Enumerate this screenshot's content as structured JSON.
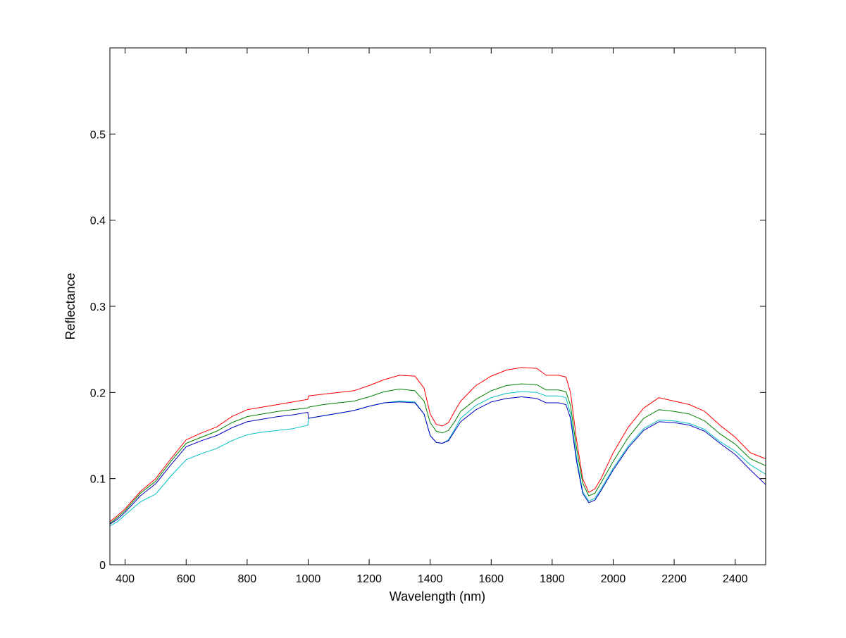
{
  "chart_data": {
    "type": "line",
    "title": "",
    "xlabel": "Wavelength (nm)",
    "ylabel": "Reflectance",
    "xlim": [
      350,
      2500
    ],
    "ylim": [
      0,
      0.6
    ],
    "xticks": [
      400,
      600,
      800,
      1000,
      1200,
      1400,
      1600,
      1800,
      2000,
      2200,
      2400
    ],
    "xtick_labels": [
      "400",
      "600",
      "800",
      "1000",
      "1200",
      "1400",
      "1600",
      "1800",
      "2000",
      "2200",
      "2400"
    ],
    "yticks": [
      0,
      0.1,
      0.2,
      0.3,
      0.4,
      0.5
    ],
    "ytick_labels": [
      "0",
      "0.1",
      "0.2",
      "0.3",
      "0.4",
      "0.5"
    ],
    "grid": false,
    "legend": null,
    "x": [
      350,
      375,
      400,
      450,
      500,
      550,
      600,
      650,
      700,
      750,
      800,
      850,
      900,
      950,
      999,
      1001,
      1050,
      1100,
      1150,
      1200,
      1250,
      1300,
      1350,
      1380,
      1400,
      1420,
      1440,
      1460,
      1480,
      1500,
      1550,
      1600,
      1650,
      1700,
      1750,
      1780,
      1820,
      1845,
      1860,
      1880,
      1900,
      1920,
      1940,
      1960,
      2000,
      2050,
      2100,
      2150,
      2200,
      2250,
      2300,
      2350,
      2400,
      2450,
      2500
    ],
    "series": [
      {
        "color": "#ff0000",
        "values": [
          0.05,
          0.057,
          0.065,
          0.085,
          0.1,
          0.123,
          0.145,
          0.153,
          0.16,
          0.172,
          0.18,
          0.183,
          0.186,
          0.189,
          0.192,
          0.196,
          0.198,
          0.2,
          0.202,
          0.208,
          0.215,
          0.22,
          0.219,
          0.205,
          0.175,
          0.163,
          0.161,
          0.165,
          0.178,
          0.19,
          0.208,
          0.219,
          0.226,
          0.229,
          0.228,
          0.22,
          0.22,
          0.218,
          0.2,
          0.145,
          0.1,
          0.084,
          0.088,
          0.1,
          0.13,
          0.16,
          0.182,
          0.194,
          0.19,
          0.186,
          0.178,
          0.162,
          0.148,
          0.13,
          0.123
        ]
      },
      {
        "color": "#008000",
        "values": [
          0.048,
          0.055,
          0.063,
          0.083,
          0.097,
          0.12,
          0.141,
          0.148,
          0.155,
          0.165,
          0.172,
          0.175,
          0.178,
          0.18,
          0.182,
          0.183,
          0.186,
          0.188,
          0.19,
          0.195,
          0.201,
          0.204,
          0.202,
          0.19,
          0.165,
          0.155,
          0.153,
          0.156,
          0.166,
          0.178,
          0.192,
          0.202,
          0.208,
          0.21,
          0.209,
          0.203,
          0.203,
          0.201,
          0.185,
          0.135,
          0.095,
          0.08,
          0.083,
          0.095,
          0.12,
          0.148,
          0.17,
          0.18,
          0.178,
          0.175,
          0.167,
          0.152,
          0.14,
          0.123,
          0.115
        ]
      },
      {
        "color": "#00bfbf",
        "values": [
          0.045,
          0.05,
          0.058,
          0.073,
          0.082,
          0.103,
          0.122,
          0.129,
          0.135,
          0.144,
          0.151,
          0.154,
          0.156,
          0.158,
          0.162,
          0.17,
          0.173,
          0.176,
          0.179,
          0.184,
          0.188,
          0.19,
          0.189,
          0.175,
          0.15,
          0.142,
          0.141,
          0.145,
          0.157,
          0.17,
          0.185,
          0.194,
          0.199,
          0.201,
          0.2,
          0.196,
          0.196,
          0.194,
          0.175,
          0.125,
          0.085,
          0.074,
          0.077,
          0.088,
          0.112,
          0.138,
          0.158,
          0.168,
          0.167,
          0.164,
          0.157,
          0.143,
          0.132,
          0.116,
          0.105
        ]
      },
      {
        "color": "#0000bf",
        "values": [
          0.047,
          0.053,
          0.061,
          0.08,
          0.094,
          0.116,
          0.137,
          0.144,
          0.15,
          0.159,
          0.166,
          0.169,
          0.172,
          0.174,
          0.177,
          0.17,
          0.173,
          0.176,
          0.179,
          0.184,
          0.188,
          0.189,
          0.188,
          0.175,
          0.15,
          0.142,
          0.141,
          0.144,
          0.155,
          0.166,
          0.18,
          0.189,
          0.193,
          0.195,
          0.193,
          0.188,
          0.188,
          0.186,
          0.17,
          0.12,
          0.083,
          0.072,
          0.075,
          0.086,
          0.11,
          0.136,
          0.156,
          0.166,
          0.165,
          0.162,
          0.155,
          0.141,
          0.128,
          0.11,
          0.093
        ]
      }
    ]
  }
}
